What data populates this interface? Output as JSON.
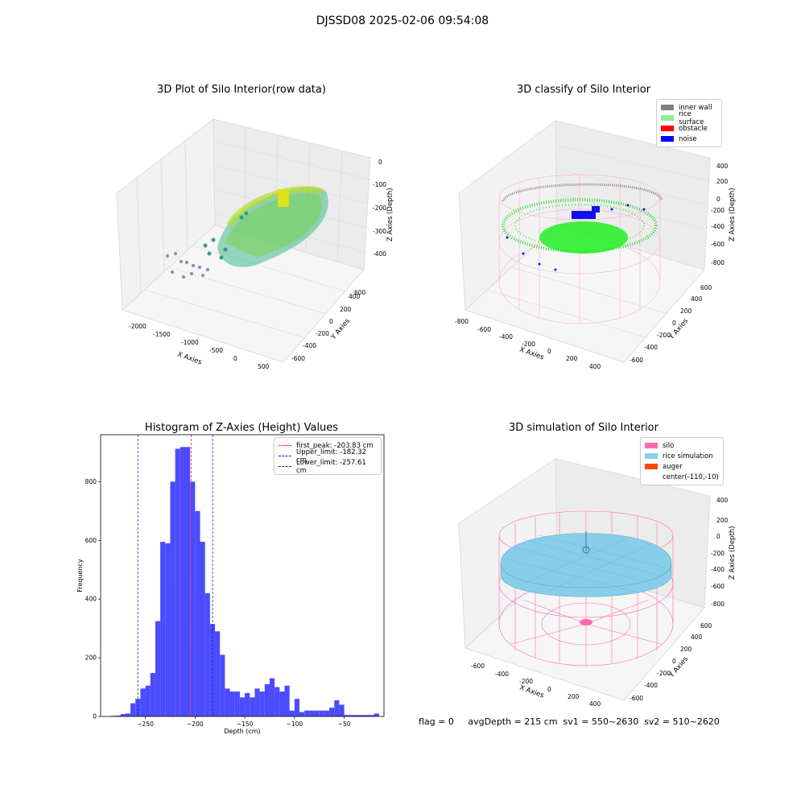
{
  "figure": {
    "suptitle": "DJSSD08 2025-02-06 09:54:08"
  },
  "colors": {
    "histogram_bar": "#4b4bff",
    "peak_line": "#ff2020",
    "limit_line": "#2020c8",
    "inner_wall": "#808080",
    "rice_surface": "#90ee90",
    "obstacle": "#ff0000",
    "noise": "#0000ff",
    "silo": "#ff69b4",
    "rice_simulation": "#87ceeb",
    "auger": "#ff4500"
  },
  "chart_data": [
    {
      "type": "scatter",
      "title": "3D Plot of Silo Interior(row data)",
      "xlabel": "X Axies",
      "ylabel": "Y Axies",
      "zlabel": "Z Axies (Depth)",
      "x_ticks": [
        "-2000",
        "-1500",
        "-1000",
        "-500",
        "0",
        "500"
      ],
      "y_ticks": [
        "-600",
        "-400",
        "-200",
        "0",
        "200",
        "400",
        "600"
      ],
      "z_ticks": [
        "-400",
        "-300",
        "-200",
        "-100",
        "0"
      ],
      "colormap": "viridis"
    },
    {
      "type": "scatter",
      "title": "3D classify of Silo Interior",
      "xlabel": "X Axies",
      "ylabel": "Y Axies",
      "zlabel": "Z Axies (Depth)",
      "x_ticks": [
        "-800",
        "-600",
        "-400",
        "-200",
        "0",
        "200",
        "400"
      ],
      "y_ticks": [
        "-600",
        "-400",
        "-200",
        "0",
        "200",
        "400",
        "600"
      ],
      "z_ticks": [
        "-800",
        "-600",
        "-400",
        "-200",
        "0",
        "200",
        "400"
      ],
      "legend": [
        "inner wall",
        "rice surface",
        "obstacle",
        "noise"
      ],
      "legend_position": "top-right"
    },
    {
      "type": "bar",
      "title": "Histogram of Z-Axies (Height) Values",
      "xlabel": "Depth (cm)",
      "ylabel": "Frequency",
      "xlim": [
        -295,
        -10
      ],
      "ylim": [
        0,
        960
      ],
      "x_ticks": [
        -250,
        -200,
        -150,
        -100,
        -50
      ],
      "y_ticks": [
        0,
        200,
        400,
        600,
        800
      ],
      "bin_width": 5,
      "bins": [
        {
          "x": -285,
          "v": 2
        },
        {
          "x": -280,
          "v": 3
        },
        {
          "x": -275,
          "v": 8
        },
        {
          "x": -270,
          "v": 10
        },
        {
          "x": -265,
          "v": 45
        },
        {
          "x": -260,
          "v": 60
        },
        {
          "x": -255,
          "v": 95
        },
        {
          "x": -250,
          "v": 105
        },
        {
          "x": -245,
          "v": 148
        },
        {
          "x": -240,
          "v": 325
        },
        {
          "x": -235,
          "v": 595
        },
        {
          "x": -230,
          "v": 590
        },
        {
          "x": -225,
          "v": 800
        },
        {
          "x": -220,
          "v": 912
        },
        {
          "x": -215,
          "v": 918
        },
        {
          "x": -210,
          "v": 918
        },
        {
          "x": -205,
          "v": 800
        },
        {
          "x": -200,
          "v": 700
        },
        {
          "x": -195,
          "v": 595
        },
        {
          "x": -190,
          "v": 420
        },
        {
          "x": -185,
          "v": 315
        },
        {
          "x": -180,
          "v": 290
        },
        {
          "x": -175,
          "v": 210
        },
        {
          "x": -170,
          "v": 95
        },
        {
          "x": -165,
          "v": 85
        },
        {
          "x": -160,
          "v": 85
        },
        {
          "x": -155,
          "v": 65
        },
        {
          "x": -150,
          "v": 80
        },
        {
          "x": -145,
          "v": 65
        },
        {
          "x": -140,
          "v": 95
        },
        {
          "x": -135,
          "v": 85
        },
        {
          "x": -130,
          "v": 110
        },
        {
          "x": -125,
          "v": 130
        },
        {
          "x": -120,
          "v": 100
        },
        {
          "x": -115,
          "v": 85
        },
        {
          "x": -110,
          "v": 105
        },
        {
          "x": -105,
          "v": 20
        },
        {
          "x": -100,
          "v": 60
        },
        {
          "x": -95,
          "v": 15
        },
        {
          "x": -90,
          "v": 20
        },
        {
          "x": -85,
          "v": 20
        },
        {
          "x": -80,
          "v": 20
        },
        {
          "x": -75,
          "v": 20
        },
        {
          "x": -70,
          "v": 20
        },
        {
          "x": -65,
          "v": 30
        },
        {
          "x": -60,
          "v": 55
        },
        {
          "x": -55,
          "v": 40
        },
        {
          "x": -50,
          "v": 5
        },
        {
          "x": -45,
          "v": 5
        },
        {
          "x": -40,
          "v": 5
        },
        {
          "x": -35,
          "v": 5
        },
        {
          "x": -30,
          "v": 5
        },
        {
          "x": -25,
          "v": 5
        },
        {
          "x": -20,
          "v": 10
        }
      ],
      "vlines": [
        {
          "x": -203.83,
          "label": "first_peak: -203.83 cm",
          "color": "#ff2020"
        },
        {
          "x": -182.32,
          "label": "Upper_limit: -182.32 cm",
          "color": "#2020c8"
        },
        {
          "x": -257.61,
          "label": "Lower_limit: -257.61 cm",
          "color": "#2020c8"
        }
      ],
      "legend_position": "top-right"
    },
    {
      "type": "scatter",
      "title": "3D simulation of Silo Interior",
      "xlabel": "X Axies",
      "ylabel": "Y Axies",
      "zlabel": "Z Axies (Depth)",
      "x_ticks": [
        "-600",
        "-400",
        "-200",
        "0",
        "200",
        "400"
      ],
      "y_ticks": [
        "-600",
        "-400",
        "-200",
        "0",
        "200",
        "400",
        "600"
      ],
      "z_ticks": [
        "-800",
        "-600",
        "-400",
        "-200",
        "0",
        "200",
        "400"
      ],
      "legend": [
        "silo",
        "rice simulation",
        "auger",
        "center(-110,-10)"
      ],
      "legend_position": "top-right"
    }
  ],
  "footer": {
    "text": "flag = 0     avgDepth = 215 cm  sv1 = 550~2630  sv2 = 510~2620"
  }
}
